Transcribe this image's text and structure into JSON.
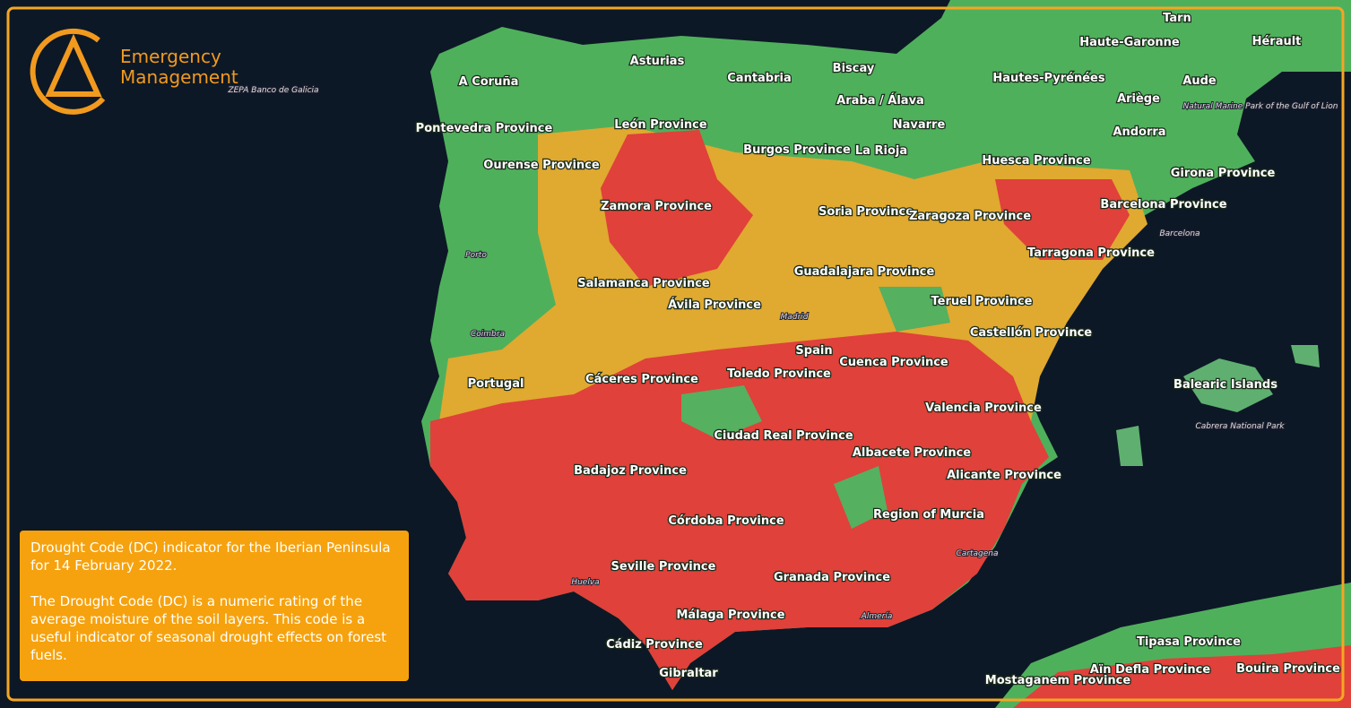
{
  "logo": {
    "line1": "Emergency",
    "line2": "Management"
  },
  "caption": {
    "title": "Drought Code (DC) indicator for the Iberian Peninsula for 14 February 2022.",
    "body": "The Drought Code (DC) is a numeric rating of the average moisture of the soil layers. This code is a useful indicator of seasonal drought effects on forest fuels."
  },
  "labels": [
    "Asturias",
    "A Coruña",
    "Cantabria",
    "Biscay",
    "Araba / Álava",
    "Navarre",
    "La Rioja",
    "Burgos Province",
    "León Province",
    "Pontevedra Province",
    "Ourense Province",
    "Zamora Province",
    "Salamanca Province",
    "Ávila Province",
    "Soria Province",
    "Zaragoza Province",
    "Huesca Province",
    "Barcelona Province",
    "Girona Province",
    "Tarragona Province",
    "Guadalajara Province",
    "Teruel Province",
    "Castellón Province",
    "Cuenca Province",
    "Toledo Province",
    "Spain",
    "Portugal",
    "Cáceres Province",
    "Valencia Province",
    "Balearic Islands",
    "Ciudad Real Province",
    "Albacete Province",
    "Badajoz Province",
    "Alicante Province",
    "Córdoba Province",
    "Region of Murcia",
    "Seville Province",
    "Granada Province",
    "Málaga Province",
    "Cádiz Province",
    "Gibraltar",
    "Haute-Garonne",
    "Hérault",
    "Hautes-Pyrénées",
    "Aude",
    "Ariège",
    "Andorra",
    "Tarn",
    "Tipasa Province",
    "Aïn Defla Province",
    "Bouira Province",
    "Mostaganem Province"
  ],
  "small_labels": [
    "ZEPA Banco de Galicia",
    "Madrid",
    "Barcelona",
    "Porto",
    "Coimbra",
    "Huelva",
    "Cartagena",
    "Almería",
    "Cabrera National Park",
    "Natural Marine Park of the Gulf of Lion"
  ]
}
